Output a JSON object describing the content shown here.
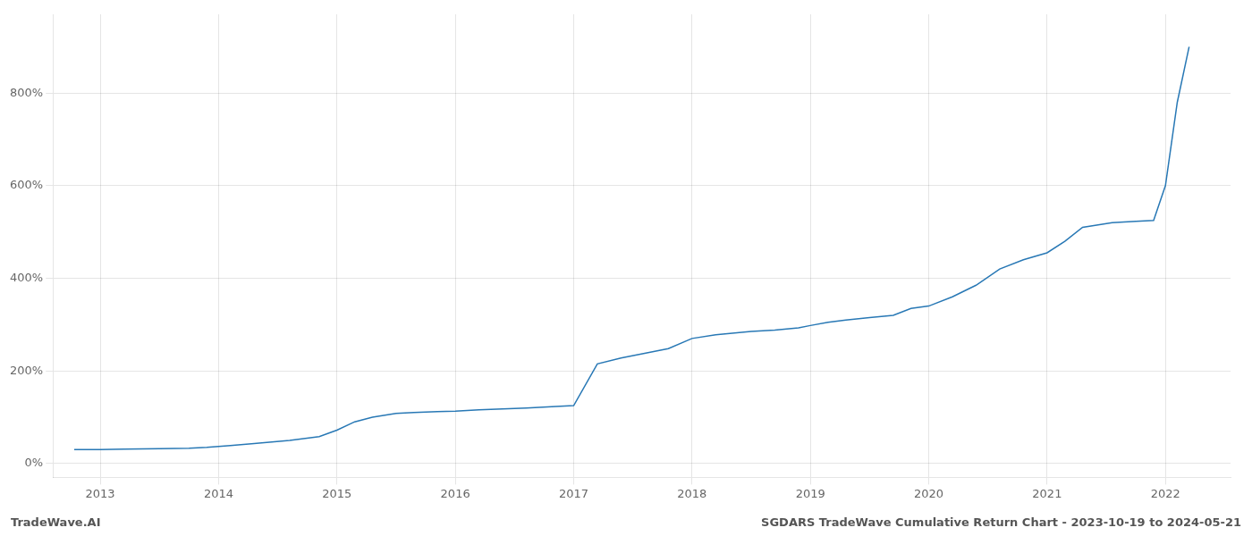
{
  "chart_data": {
    "type": "line",
    "title": "SGDARS TradeWave Cumulative Return Chart - 2023-10-19 to 2024-05-21",
    "annotations": [
      "TradeWave.AI"
    ],
    "color": "#2878b5",
    "grid": true,
    "x": [
      2012.78,
      2013.0,
      2013.2,
      2013.5,
      2013.75,
      2013.9,
      2014.0,
      2014.1,
      2014.3,
      2014.6,
      2014.85,
      2015.0,
      2015.15,
      2015.3,
      2015.5,
      2015.65,
      2015.85,
      2016.0,
      2016.2,
      2016.4,
      2016.6,
      2016.85,
      2017.0,
      2017.2,
      2017.4,
      2017.6,
      2017.8,
      2018.0,
      2018.2,
      2018.5,
      2018.7,
      2018.9,
      2019.0,
      2019.15,
      2019.3,
      2019.5,
      2019.7,
      2019.85,
      2020.0,
      2020.2,
      2020.4,
      2020.6,
      2020.8,
      2021.0,
      2021.15,
      2021.3,
      2021.55,
      2021.75,
      2021.9,
      2022.0,
      2022.1,
      2022.2
    ],
    "values": [
      30,
      30,
      31,
      32,
      33,
      35,
      37,
      39,
      43,
      50,
      58,
      72,
      90,
      100,
      108,
      110,
      112,
      113,
      116,
      118,
      120,
      123,
      125,
      215,
      228,
      238,
      248,
      270,
      278,
      285,
      288,
      293,
      298,
      305,
      310,
      315,
      320,
      335,
      340,
      360,
      385,
      420,
      440,
      455,
      480,
      510,
      520,
      523,
      525,
      600,
      780,
      900
    ],
    "xlim": [
      2012.6,
      2022.55
    ],
    "xticks": [
      2013,
      2014,
      2015,
      2016,
      2017,
      2018,
      2019,
      2020,
      2021,
      2022
    ],
    "ylim": [
      -30,
      970
    ],
    "yticks": [
      {
        "value": 0,
        "label": "0%"
      },
      {
        "value": 200,
        "label": "200%"
      },
      {
        "value": 400,
        "label": "400%"
      },
      {
        "value": 600,
        "label": "600%"
      },
      {
        "value": 800,
        "label": "800%"
      }
    ]
  }
}
